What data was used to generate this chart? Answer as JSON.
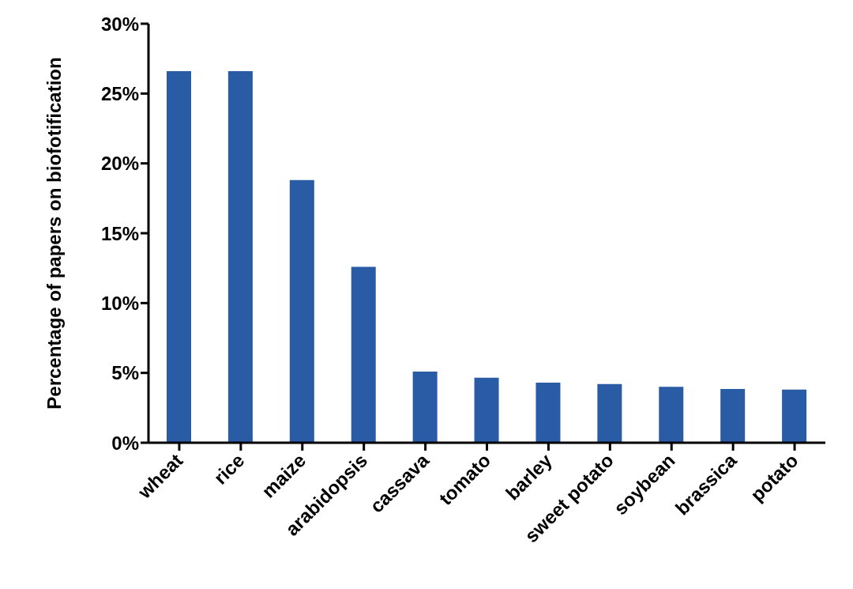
{
  "chart_data": {
    "type": "bar",
    "ylabel": "Percentage of papers on biofotification",
    "categories": [
      "wheat",
      "rice",
      "maize",
      "arabidopsis",
      "cassava",
      "tomato",
      "barley",
      "sweet potato",
      "soybean",
      "brassica",
      "potato"
    ],
    "values": [
      26.6,
      26.6,
      18.8,
      12.6,
      5.1,
      4.65,
      4.3,
      4.2,
      4.0,
      3.85,
      3.8
    ],
    "color": "#2a5ba5",
    "ylim": [
      0,
      30
    ],
    "yticks": [
      {
        "value": 0,
        "label": "0%"
      },
      {
        "value": 5,
        "label": "5%"
      },
      {
        "value": 10,
        "label": "10%"
      },
      {
        "value": 15,
        "label": "15%"
      },
      {
        "value": 20,
        "label": "20%"
      },
      {
        "value": 25,
        "label": "25%"
      },
      {
        "value": 30,
        "label": "30%"
      }
    ],
    "grid": false,
    "legend": false
  }
}
